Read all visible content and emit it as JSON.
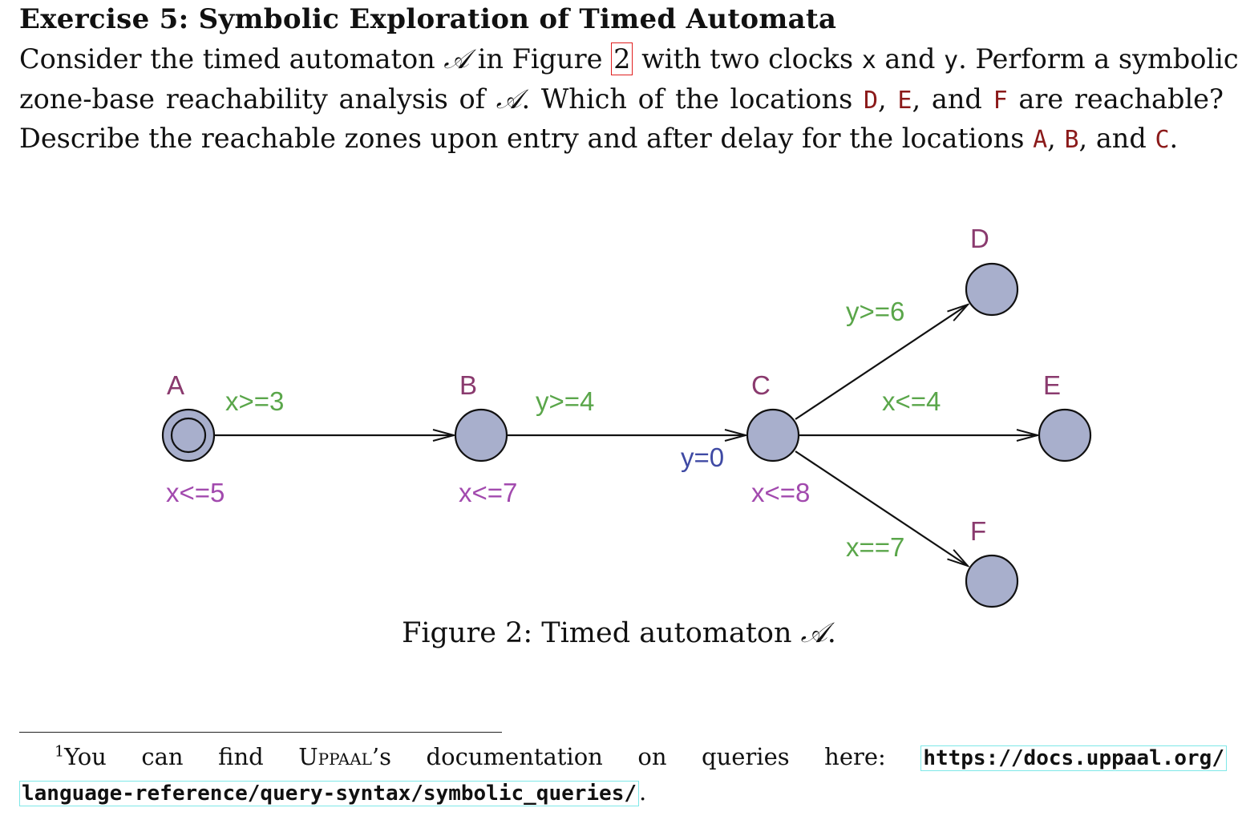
{
  "exercise": {
    "title": "Exercise 5: Symbolic Exploration of Timed Automata",
    "p1_a": "Consider the timed automaton ",
    "p1_cal": "𝒜",
    "p1_b": " in Figure ",
    "p1_ref": "2",
    "p1_c": " with two clocks ",
    "clock_x": "x",
    "p1_d": " and ",
    "clock_y": "y",
    "p1_e": ". Perform a symbolic",
    "p2_a": "zone-base reachability analysis of ",
    "p2_cal": "𝒜",
    "p2_b": ". Which of the locations ",
    "loc_d": "D",
    "p2_c": ", ",
    "loc_e": "E",
    "p2_d": ", and ",
    "loc_f": "F",
    "p2_e": " are reachable?",
    "p3_a": "Describe the reachable zones upon entry and after delay for the locations ",
    "loc_a": "A",
    "p3_b": ", ",
    "loc_b": "B",
    "p3_c": ", and ",
    "loc_c": "C",
    "p3_d": "."
  },
  "automaton": {
    "colors": {
      "node_fill": "#a8afcc",
      "location_name": "#8a3a6e",
      "guard": "#5aa64a",
      "invariant": "#a24aae",
      "assignment": "#3f4aa4"
    },
    "locations": [
      {
        "name": "A",
        "invariant": "x<=5",
        "initial": true
      },
      {
        "name": "B",
        "invariant": "x<=7"
      },
      {
        "name": "C",
        "invariant": "x<=8"
      },
      {
        "name": "D"
      },
      {
        "name": "E"
      },
      {
        "name": "F"
      }
    ],
    "edges": [
      {
        "from": "A",
        "to": "B",
        "guard": "x>=3"
      },
      {
        "from": "B",
        "to": "C",
        "guard": "y>=4",
        "assignment": "y=0"
      },
      {
        "from": "C",
        "to": "D",
        "guard": "y>=6"
      },
      {
        "from": "C",
        "to": "E",
        "guard": "x<=4"
      },
      {
        "from": "C",
        "to": "F",
        "guard": "x==7"
      }
    ]
  },
  "caption": {
    "text": "Figure 2: Timed automaton ",
    "cal": "𝒜",
    "end": "."
  },
  "footnote": {
    "mark": "1",
    "t1": "You can find ",
    "uppaal": "Uppaal",
    "t2": "’s documentation on queries here: ",
    "url1": "https://docs.uppaal.org/",
    "url2": "language-reference/query-syntax/symbolic_queries/",
    "end": "."
  }
}
